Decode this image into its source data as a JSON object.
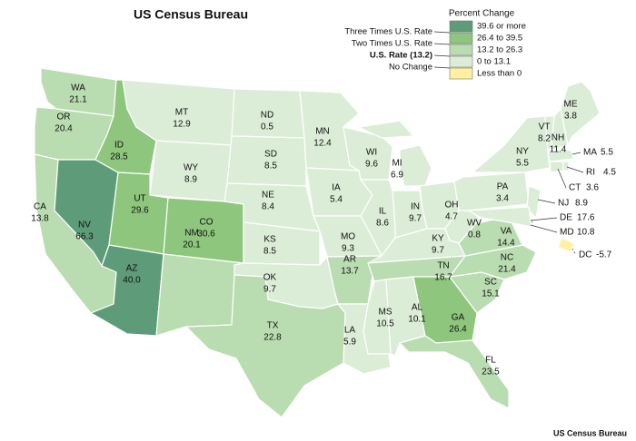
{
  "title": "US Census Bureau",
  "legend": {
    "title": "Percent Change",
    "markers": [
      "Three Times U.S. Rate",
      "Two Times U.S. Rate",
      "U.S. Rate (13.2)",
      "No Change"
    ],
    "items": [
      {
        "label": "39.6 or more",
        "color": "#5e9c79"
      },
      {
        "label": "26.4 to 39.5",
        "color": "#8dc67c"
      },
      {
        "label": "13.2 to 26.3",
        "color": "#badcb1"
      },
      {
        "label": "0 to 13.1",
        "color": "#dcedd7"
      },
      {
        "label": "Less than 0",
        "color": "#fff1a0"
      }
    ]
  },
  "states": [
    {
      "abbr": "WA",
      "value": "21.1",
      "color": "#badcb1"
    },
    {
      "abbr": "OR",
      "value": "20.4",
      "color": "#badcb1"
    },
    {
      "abbr": "CA",
      "value": "13.8",
      "color": "#badcb1"
    },
    {
      "abbr": "NV",
      "value": "66.3",
      "color": "#5e9c79"
    },
    {
      "abbr": "ID",
      "value": "28.5",
      "color": "#8dc67c"
    },
    {
      "abbr": "MT",
      "value": "12.9",
      "color": "#dcedd7"
    },
    {
      "abbr": "WY",
      "value": "8.9",
      "color": "#dcedd7"
    },
    {
      "abbr": "UT",
      "value": "29.6",
      "color": "#8dc67c"
    },
    {
      "abbr": "AZ",
      "value": "40.0",
      "color": "#5e9c79"
    },
    {
      "abbr": "CO",
      "value": "30.6",
      "color": "#8dc67c"
    },
    {
      "abbr": "NM",
      "value": "20.1",
      "color": "#badcb1"
    },
    {
      "abbr": "ND",
      "value": "0.5",
      "color": "#dcedd7"
    },
    {
      "abbr": "SD",
      "value": "8.5",
      "color": "#dcedd7"
    },
    {
      "abbr": "NE",
      "value": "8.4",
      "color": "#dcedd7"
    },
    {
      "abbr": "KS",
      "value": "8.5",
      "color": "#dcedd7"
    },
    {
      "abbr": "OK",
      "value": "9.7",
      "color": "#dcedd7"
    },
    {
      "abbr": "TX",
      "value": "22.8",
      "color": "#badcb1"
    },
    {
      "abbr": "MN",
      "value": "12.4",
      "color": "#dcedd7"
    },
    {
      "abbr": "IA",
      "value": "5.4",
      "color": "#dcedd7"
    },
    {
      "abbr": "MO",
      "value": "9.3",
      "color": "#dcedd7"
    },
    {
      "abbr": "AR",
      "value": "13.7",
      "color": "#badcb1"
    },
    {
      "abbr": "LA",
      "value": "5.9",
      "color": "#dcedd7"
    },
    {
      "abbr": "WI",
      "value": "9.6",
      "color": "#dcedd7"
    },
    {
      "abbr": "IL",
      "value": "8.6",
      "color": "#dcedd7"
    },
    {
      "abbr": "MI",
      "value": "6.9",
      "color": "#dcedd7"
    },
    {
      "abbr": "IN",
      "value": "9.7",
      "color": "#dcedd7"
    },
    {
      "abbr": "OH",
      "value": "4.7",
      "color": "#dcedd7"
    },
    {
      "abbr": "KY",
      "value": "9.7",
      "color": "#dcedd7"
    },
    {
      "abbr": "TN",
      "value": "16.7",
      "color": "#badcb1"
    },
    {
      "abbr": "MS",
      "value": "10.5",
      "color": "#dcedd7"
    },
    {
      "abbr": "AL",
      "value": "10.1",
      "color": "#dcedd7"
    },
    {
      "abbr": "GA",
      "value": "26.4",
      "color": "#8dc67c"
    },
    {
      "abbr": "FL",
      "value": "23.5",
      "color": "#badcb1"
    },
    {
      "abbr": "SC",
      "value": "15.1",
      "color": "#badcb1"
    },
    {
      "abbr": "NC",
      "value": "21.4",
      "color": "#badcb1"
    },
    {
      "abbr": "VA",
      "value": "14.4",
      "color": "#badcb1"
    },
    {
      "abbr": "WV",
      "value": "0.8",
      "color": "#dcedd7"
    },
    {
      "abbr": "PA",
      "value": "3.4",
      "color": "#dcedd7"
    },
    {
      "abbr": "NY",
      "value": "5.5",
      "color": "#dcedd7"
    },
    {
      "abbr": "VT",
      "value": "8.2",
      "color": "#dcedd7"
    },
    {
      "abbr": "NH",
      "value": "11.4",
      "color": "#dcedd7"
    },
    {
      "abbr": "ME",
      "value": "3.8",
      "color": "#dcedd7"
    },
    {
      "abbr": "MA",
      "value": "5.5",
      "color": "#dcedd7"
    },
    {
      "abbr": "RI",
      "value": "4.5",
      "color": "#dcedd7"
    },
    {
      "abbr": "CT",
      "value": "3.6",
      "color": "#dcedd7"
    },
    {
      "abbr": "NJ",
      "value": "8.9",
      "color": "#dcedd7"
    },
    {
      "abbr": "DE",
      "value": "17.6",
      "color": "#badcb1"
    },
    {
      "abbr": "MD",
      "value": "10.8",
      "color": "#dcedd7"
    },
    {
      "abbr": "DC",
      "value": "-5.7",
      "color": "#fff1a0"
    }
  ],
  "source": "US Census Bureau"
}
